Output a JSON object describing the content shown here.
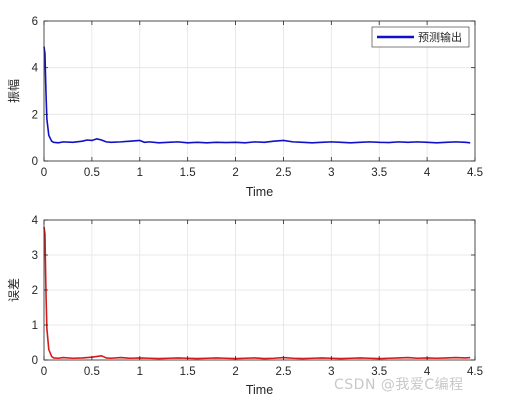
{
  "watermark": "CSDN @我爱C编程",
  "chart_data": [
    {
      "type": "line",
      "xlabel": "Time",
      "ylabel": "振幅",
      "xlim": [
        0,
        4.5
      ],
      "ylim": [
        0,
        6
      ],
      "xticks": [
        "0",
        "0.5",
        "1",
        "1.5",
        "2",
        "2.5",
        "3",
        "3.5",
        "4",
        "4.5"
      ],
      "yticks": [
        "0",
        "2",
        "4",
        "6"
      ],
      "grid": true,
      "legend": {
        "position": "top-right",
        "entries": [
          "预测输出"
        ]
      },
      "color": "#1010c8",
      "series": [
        {
          "name": "预测输出",
          "x": [
            0.0,
            0.01,
            0.02,
            0.03,
            0.05,
            0.08,
            0.1,
            0.15,
            0.2,
            0.3,
            0.4,
            0.45,
            0.5,
            0.55,
            0.6,
            0.65,
            0.7,
            0.8,
            0.9,
            1.0,
            1.05,
            1.1,
            1.2,
            1.3,
            1.4,
            1.5,
            1.6,
            1.7,
            1.8,
            1.9,
            2.0,
            2.1,
            2.2,
            2.3,
            2.4,
            2.5,
            2.6,
            2.7,
            2.8,
            2.9,
            3.0,
            3.1,
            3.2,
            3.3,
            3.4,
            3.5,
            3.6,
            3.7,
            3.8,
            3.9,
            4.0,
            4.1,
            4.2,
            4.3,
            4.4,
            4.45
          ],
          "y": [
            4.9,
            4.6,
            3.0,
            1.8,
            1.1,
            0.85,
            0.8,
            0.78,
            0.82,
            0.8,
            0.85,
            0.9,
            0.88,
            0.95,
            0.9,
            0.82,
            0.8,
            0.82,
            0.85,
            0.88,
            0.8,
            0.82,
            0.78,
            0.8,
            0.82,
            0.78,
            0.8,
            0.78,
            0.8,
            0.79,
            0.8,
            0.78,
            0.82,
            0.8,
            0.85,
            0.88,
            0.82,
            0.8,
            0.78,
            0.8,
            0.82,
            0.8,
            0.78,
            0.8,
            0.82,
            0.8,
            0.79,
            0.82,
            0.8,
            0.82,
            0.8,
            0.78,
            0.8,
            0.82,
            0.8,
            0.78
          ]
        }
      ]
    },
    {
      "type": "line",
      "xlabel": "Time",
      "ylabel": "误差",
      "xlim": [
        0,
        4.5
      ],
      "ylim": [
        0,
        4
      ],
      "xticks": [
        "0",
        "0.5",
        "1",
        "1.5",
        "2",
        "2.5",
        "3",
        "3.5",
        "4",
        "4.5"
      ],
      "yticks": [
        "0",
        "1",
        "2",
        "3",
        "4"
      ],
      "grid": true,
      "color": "#d61a1a",
      "series": [
        {
          "x": [
            0.0,
            0.01,
            0.02,
            0.03,
            0.05,
            0.08,
            0.1,
            0.15,
            0.2,
            0.3,
            0.4,
            0.5,
            0.6,
            0.65,
            0.7,
            0.8,
            0.9,
            1.0,
            1.1,
            1.2,
            1.3,
            1.4,
            1.5,
            1.6,
            1.7,
            1.8,
            1.9,
            2.0,
            2.1,
            2.2,
            2.3,
            2.4,
            2.5,
            2.6,
            2.7,
            2.8,
            2.9,
            3.0,
            3.1,
            3.2,
            3.3,
            3.4,
            3.5,
            3.6,
            3.7,
            3.8,
            3.9,
            4.0,
            4.1,
            4.2,
            4.3,
            4.4,
            4.45
          ],
          "y": [
            3.8,
            3.6,
            2.0,
            0.9,
            0.3,
            0.1,
            0.06,
            0.05,
            0.07,
            0.05,
            0.06,
            0.08,
            0.12,
            0.06,
            0.05,
            0.07,
            0.05,
            0.06,
            0.05,
            0.04,
            0.05,
            0.06,
            0.05,
            0.04,
            0.05,
            0.06,
            0.05,
            0.04,
            0.05,
            0.06,
            0.04,
            0.05,
            0.07,
            0.05,
            0.04,
            0.05,
            0.06,
            0.05,
            0.04,
            0.05,
            0.06,
            0.05,
            0.04,
            0.05,
            0.06,
            0.07,
            0.05,
            0.06,
            0.05,
            0.06,
            0.07,
            0.06,
            0.07
          ]
        }
      ]
    }
  ]
}
